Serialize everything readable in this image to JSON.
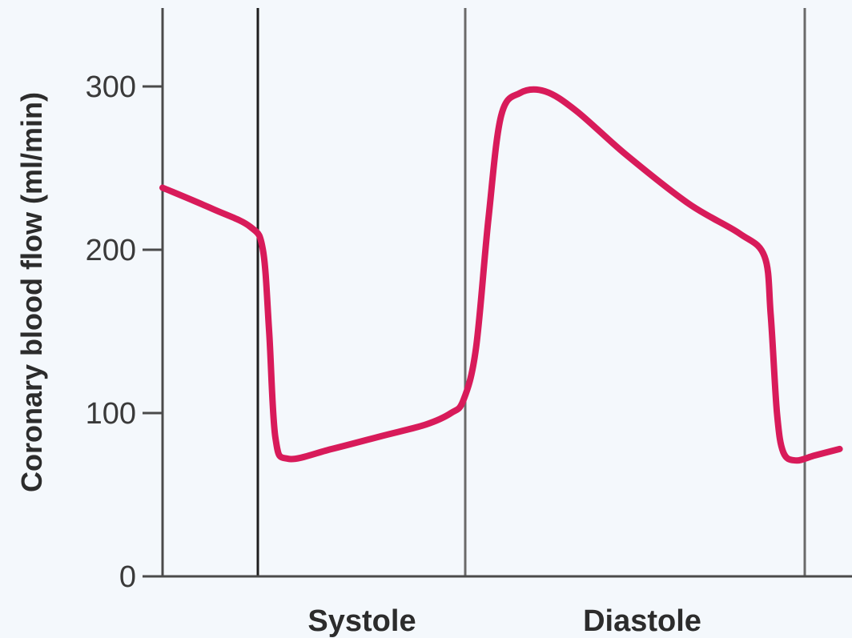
{
  "chart_data": {
    "type": "line",
    "title": "",
    "ylabel": "Coronary blood flow (ml/min)",
    "xlabel": "",
    "ylim": [
      0,
      350
    ],
    "yticks": [
      0,
      100,
      200,
      300
    ],
    "ytick_labels": [
      "0",
      "100",
      "200",
      "300"
    ],
    "phases": [
      {
        "label": "Systole"
      },
      {
        "label": "Diastole"
      }
    ],
    "grid": false,
    "series": [
      {
        "color": "#d81b5a",
        "points": [
          [
            0.0,
            238
          ],
          [
            0.08,
            225
          ],
          [
            0.14,
            214
          ],
          [
            0.16,
            200
          ],
          [
            0.17,
            150
          ],
          [
            0.18,
            85
          ],
          [
            0.2,
            72
          ],
          [
            0.27,
            78
          ],
          [
            0.35,
            86
          ],
          [
            0.42,
            93
          ],
          [
            0.46,
            100
          ],
          [
            0.48,
            108
          ],
          [
            0.5,
            140
          ],
          [
            0.52,
            220
          ],
          [
            0.54,
            282
          ],
          [
            0.57,
            296
          ],
          [
            0.61,
            297
          ],
          [
            0.66,
            285
          ],
          [
            0.74,
            258
          ],
          [
            0.84,
            228
          ],
          [
            0.92,
            210
          ],
          [
            0.96,
            196
          ],
          [
            0.97,
            160
          ],
          [
            0.98,
            100
          ],
          [
            0.99,
            76
          ],
          [
            1.01,
            71
          ],
          [
            1.04,
            74
          ],
          [
            1.08,
            78
          ]
        ]
      }
    ]
  }
}
